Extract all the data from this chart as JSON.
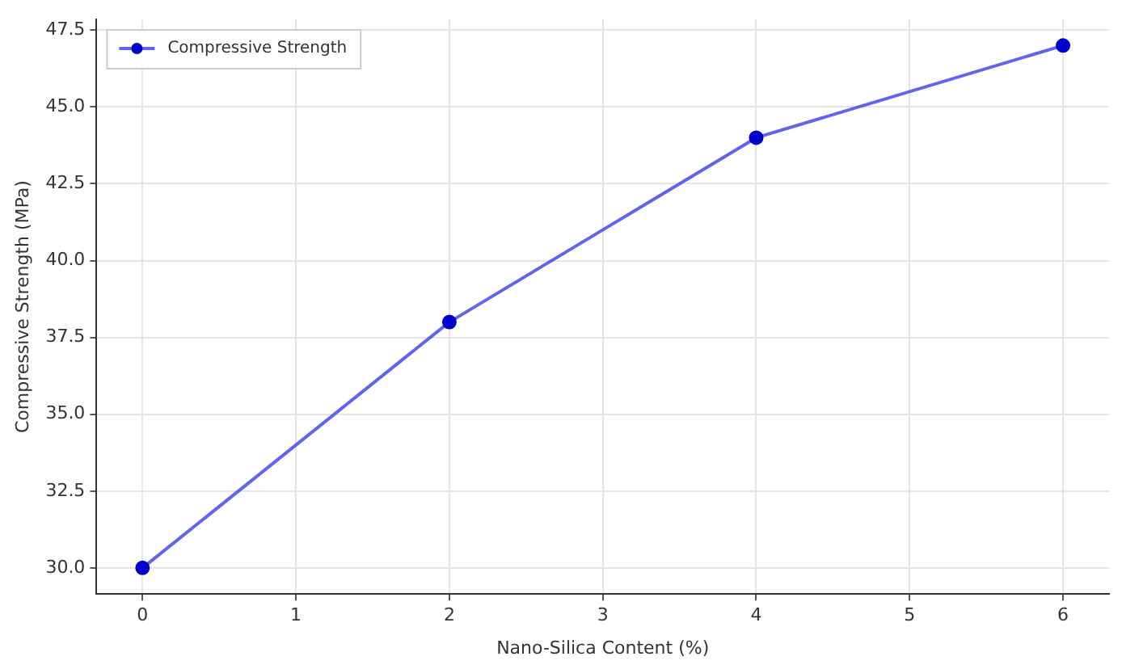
{
  "chart_data": {
    "type": "line",
    "xlabel": "Nano-Silica Content (%)",
    "ylabel": "Compressive Strength (MPa)",
    "x": [
      0,
      2,
      4,
      6
    ],
    "series": [
      {
        "name": "Compressive Strength",
        "color": "#3b3bf0",
        "values": [
          30,
          38,
          44,
          47
        ]
      }
    ],
    "xlim": [
      -0.3,
      6.3
    ],
    "xticks": [
      0,
      1,
      2,
      3,
      4,
      5,
      6
    ],
    "ylim": [
      29.15,
      47.85
    ],
    "yticks": [
      {
        "value": 30,
        "label": "30.0"
      },
      {
        "value": 32.5,
        "label": "32.5"
      },
      {
        "value": 35,
        "label": "35.0"
      },
      {
        "value": 37.5,
        "label": "37.5"
      },
      {
        "value": 40,
        "label": "40.0"
      },
      {
        "value": 42.5,
        "label": "42.5"
      },
      {
        "value": 45,
        "label": "45.0"
      },
      {
        "value": 47.5,
        "label": "47.5"
      }
    ],
    "grid": true,
    "legend": "top left",
    "marker": "circle",
    "line_style": "solid"
  }
}
